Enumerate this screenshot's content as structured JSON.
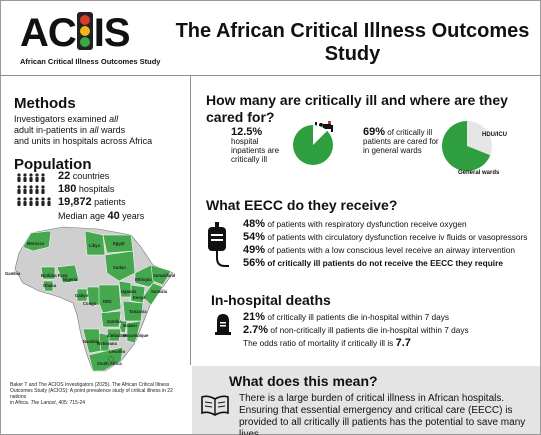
{
  "header": {
    "logo_text_pre": "AC",
    "logo_text_post": "IS",
    "logo_subtitle": "African Critical Illness Outcomes Study",
    "title": "The African Critical Illness Outcomes Study"
  },
  "methods": {
    "title": "Methods",
    "line1_pre": "Investigators examined ",
    "line1_em": "all",
    "line2_pre": "adult in-patients in ",
    "line2_em": "all",
    "line2_post": " wards",
    "line3": "and units in hospitals across Africa"
  },
  "population": {
    "title": "Population",
    "countries_value": "22",
    "countries_label": " countries",
    "hospitals_value": "180",
    "hospitals_label": " hospitals",
    "patients_value": "19,872",
    "patients_label": " patients",
    "median_label": "Median age ",
    "median_value": "40",
    "median_unit": " years"
  },
  "map_labels": [
    "Morocco",
    "Libya",
    "Egypt",
    "Sudan",
    "Gambia",
    "Burkina Faso",
    "Nigeria",
    "Ghana",
    "Ethiopia",
    "Somaliland",
    "Somalia",
    "Uganda",
    "Kenya",
    "Gabon",
    "Congo",
    "DRC",
    "Tanzania",
    "Malawi",
    "Mozambique",
    "Zambia",
    "Zimbabwe",
    "Namibia",
    "Botswana",
    "Lesotho",
    "South Africa"
  ],
  "citation": {
    "line1": "Baker T and The ACIOS Investigators (2025). The African Critical Illness",
    "line2": "Outcomes Study (ACIOS): A point prevalence study of critical illness in 22 nations",
    "line3_pre": "in Africa. ",
    "line3_em": "The Lancet",
    "line3_post": ", 405: 715-24"
  },
  "prevalence": {
    "title": "How many are critically ill and where are they cared for?",
    "ill_value": "12.5%",
    "ill_text": "hospital inpatients are critically ill",
    "ward_value": "69%",
    "ward_text": " of critically ill patients are cared for in general wards",
    "pie1_fraction": 0.125,
    "pie2_fraction": 0.69,
    "label_hdu": "HDU/ICU",
    "label_general": "General wards"
  },
  "eecc": {
    "title": "What EECC do they receive?",
    "items": [
      {
        "value": "48%",
        "text": " of patients with respiratory dysfunction receive oxygen"
      },
      {
        "value": "54%",
        "text": " of patients with circulatory dysfunction receive iv fluids or vasopressors"
      },
      {
        "value": "49%",
        "text": " of patients with a low conscious level receive an airway intervention"
      },
      {
        "value": "56%",
        "text": " of critically ill patients do not receive the EECC they require"
      }
    ]
  },
  "deaths": {
    "title": "In-hospital deaths",
    "item1_value": "21%",
    "item1_text": " of critically ill patients die in-hospital within 7 days",
    "item2_value": "2.7%",
    "item2_text": " of non-critically ill patients die in-hospital within 7 days",
    "odds_text": "The odds ratio of mortality if critically ill is ",
    "odds_value": "7.7"
  },
  "meaning": {
    "title": "What does this mean?",
    "text": "There is a large burden of critical illness in African hospitals. Ensuring that essential emergency and critical care (EECC) is provided to all critically ill patients has the potential to save many lives"
  },
  "colors": {
    "accent_green": "#2e9e3e",
    "map_green": "#45a84e",
    "map_grey": "#cfcfcf",
    "band_grey": "#e4e4e4"
  }
}
